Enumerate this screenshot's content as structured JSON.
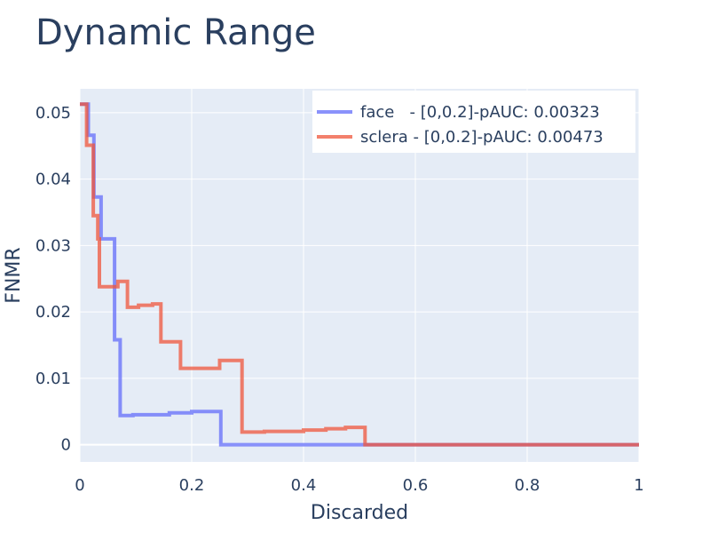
{
  "chart_data": {
    "type": "line",
    "title": "Dynamic Range",
    "xlabel": "Discarded",
    "ylabel": "FNMR",
    "xlim": [
      0,
      1
    ],
    "ylim": [
      -0.0026,
      0.0536
    ],
    "grid": true,
    "legend_position": "top-right",
    "x_ticks": [
      0,
      0.2,
      0.4,
      0.6,
      0.8,
      1
    ],
    "x_tick_labels": [
      "0",
      "0.2",
      "0.4",
      "0.6",
      "0.8",
      "1"
    ],
    "y_ticks": [
      0,
      0.01,
      0.02,
      0.03,
      0.04,
      0.05
    ],
    "y_tick_labels": [
      "0",
      "0.01",
      "0.02",
      "0.03",
      "0.04",
      "0.05"
    ],
    "series": [
      {
        "name": "face   - [0,0.2]-pAUC: 0.00323",
        "color": "#636efa",
        "x": [
          0,
          0.015,
          0.015,
          0.025,
          0.025,
          0.038,
          0.038,
          0.062,
          0.062,
          0.072,
          0.072,
          0.095,
          0.095,
          0.16,
          0.16,
          0.2,
          0.2,
          0.252,
          0.252,
          0.3,
          0.5,
          0.51,
          0.51,
          1.0
        ],
        "y": [
          0.0513,
          0.0513,
          0.0466,
          0.0466,
          0.0373,
          0.0373,
          0.031,
          0.031,
          0.0158,
          0.0158,
          0.0044,
          0.0044,
          0.0045,
          0.0045,
          0.0048,
          0.0048,
          0.005,
          0.005,
          0.0,
          0.0,
          0.0,
          0.0,
          0.0,
          0.0
        ]
      },
      {
        "name": "sclera - [0,0.2]-pAUC: 0.00473",
        "color": "#ef553b",
        "x": [
          0,
          0.012,
          0.012,
          0.024,
          0.024,
          0.032,
          0.032,
          0.035,
          0.035,
          0.068,
          0.068,
          0.085,
          0.085,
          0.105,
          0.105,
          0.13,
          0.13,
          0.145,
          0.145,
          0.18,
          0.18,
          0.25,
          0.25,
          0.29,
          0.29,
          0.33,
          0.33,
          0.4,
          0.4,
          0.44,
          0.44,
          0.475,
          0.475,
          0.51,
          0.51,
          1.0
        ],
        "y": [
          0.0513,
          0.0513,
          0.0451,
          0.0451,
          0.0345,
          0.0345,
          0.031,
          0.031,
          0.0238,
          0.0238,
          0.0246,
          0.0246,
          0.0207,
          0.0207,
          0.021,
          0.021,
          0.0212,
          0.0212,
          0.0155,
          0.0155,
          0.0115,
          0.0115,
          0.0127,
          0.0127,
          0.0019,
          0.0019,
          0.002,
          0.002,
          0.0022,
          0.0022,
          0.0024,
          0.0024,
          0.0026,
          0.0026,
          0.0,
          0.0
        ]
      }
    ]
  }
}
